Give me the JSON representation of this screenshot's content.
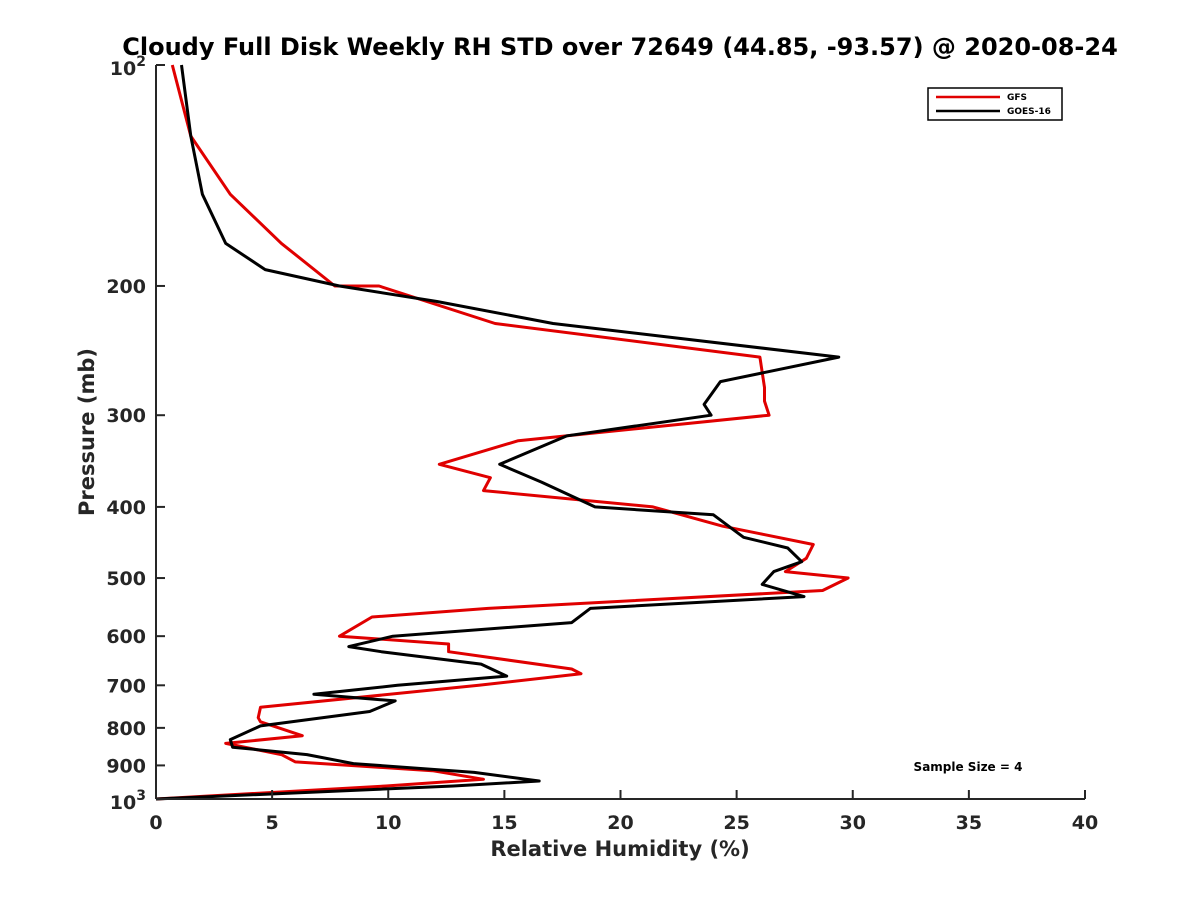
{
  "chart_data": {
    "type": "line",
    "title": "Cloudy Full Disk Weekly RH STD over 72649 (44.85, -93.57) @ 2020-08-24",
    "xlabel": "Relative Humidity (%)",
    "ylabel": "Pressure (mb)",
    "xlim": [
      0,
      40
    ],
    "ylim": [
      100,
      1000
    ],
    "y_scale": "log",
    "y_reversed": true,
    "grid": false,
    "legend_position": "top-right",
    "x_ticks": [
      "0",
      "5",
      "10",
      "15",
      "20",
      "25",
      "30",
      "35",
      "40"
    ],
    "y_ticks": [
      {
        "value": 100,
        "base": "10",
        "exp": "2"
      },
      {
        "value": 200,
        "label": "200"
      },
      {
        "value": 300,
        "label": "300"
      },
      {
        "value": 400,
        "label": "400"
      },
      {
        "value": 500,
        "label": "500"
      },
      {
        "value": 600,
        "label": "600"
      },
      {
        "value": 700,
        "label": "700"
      },
      {
        "value": 800,
        "label": "800"
      },
      {
        "value": 900,
        "label": "900"
      },
      {
        "value": 1000,
        "base": "10",
        "exp": "3"
      }
    ],
    "series": [
      {
        "name": "GFS",
        "color": "#e00000",
        "points": [
          [
            0.7,
            100
          ],
          [
            1.5,
            125
          ],
          [
            3.2,
            150
          ],
          [
            5.4,
            175
          ],
          [
            7.7,
            200
          ],
          [
            9.6,
            200
          ],
          [
            14.6,
            225
          ],
          [
            26.0,
            250
          ],
          [
            26.2,
            275
          ],
          [
            26.2,
            287
          ],
          [
            26.4,
            300
          ],
          [
            15.6,
            325
          ],
          [
            12.2,
            350
          ],
          [
            14.4,
            365
          ],
          [
            14.1,
            380
          ],
          [
            21.4,
            400
          ],
          [
            24.4,
            425
          ],
          [
            26.0,
            435
          ],
          [
            28.3,
            450
          ],
          [
            28.0,
            470
          ],
          [
            27.1,
            490
          ],
          [
            29.8,
            500
          ],
          [
            28.7,
            520
          ],
          [
            14.3,
            550
          ],
          [
            9.3,
            565
          ],
          [
            7.9,
            600
          ],
          [
            12.6,
            615
          ],
          [
            12.6,
            630
          ],
          [
            17.9,
            665
          ],
          [
            18.3,
            675
          ],
          [
            13.9,
            700
          ],
          [
            4.5,
            750
          ],
          [
            4.4,
            775
          ],
          [
            4.5,
            785
          ],
          [
            6.3,
            820
          ],
          [
            3.0,
            840
          ],
          [
            5.4,
            870
          ],
          [
            6.0,
            890
          ],
          [
            11.9,
            915
          ],
          [
            14.1,
            940
          ],
          [
            9.9,
            960
          ],
          [
            0.0,
            1000
          ]
        ]
      },
      {
        "name": "GOES-16",
        "color": "#000000",
        "points": [
          [
            1.1,
            100
          ],
          [
            1.5,
            125
          ],
          [
            2.0,
            150
          ],
          [
            3.0,
            175
          ],
          [
            4.7,
            190
          ],
          [
            7.9,
            200
          ],
          [
            12.1,
            210
          ],
          [
            17.1,
            225
          ],
          [
            29.4,
            250
          ],
          [
            24.3,
            270
          ],
          [
            23.6,
            290
          ],
          [
            23.9,
            300
          ],
          [
            17.7,
            320
          ],
          [
            14.8,
            350
          ],
          [
            16.6,
            370
          ],
          [
            18.9,
            400
          ],
          [
            24.0,
            410
          ],
          [
            25.3,
            440
          ],
          [
            27.2,
            455
          ],
          [
            27.8,
            475
          ],
          [
            26.6,
            490
          ],
          [
            26.1,
            510
          ],
          [
            27.9,
            530
          ],
          [
            18.7,
            550
          ],
          [
            17.9,
            575
          ],
          [
            10.2,
            600
          ],
          [
            8.3,
            620
          ],
          [
            9.7,
            630
          ],
          [
            14.0,
            655
          ],
          [
            15.1,
            680
          ],
          [
            10.4,
            700
          ],
          [
            6.8,
            720
          ],
          [
            10.3,
            735
          ],
          [
            9.2,
            760
          ],
          [
            4.5,
            795
          ],
          [
            3.2,
            830
          ],
          [
            3.3,
            850
          ],
          [
            6.5,
            870
          ],
          [
            8.5,
            895
          ],
          [
            13.7,
            920
          ],
          [
            16.5,
            945
          ],
          [
            12.8,
            960
          ],
          [
            0.0,
            1000
          ]
        ]
      }
    ],
    "annotation": "Sample Size = 4"
  }
}
